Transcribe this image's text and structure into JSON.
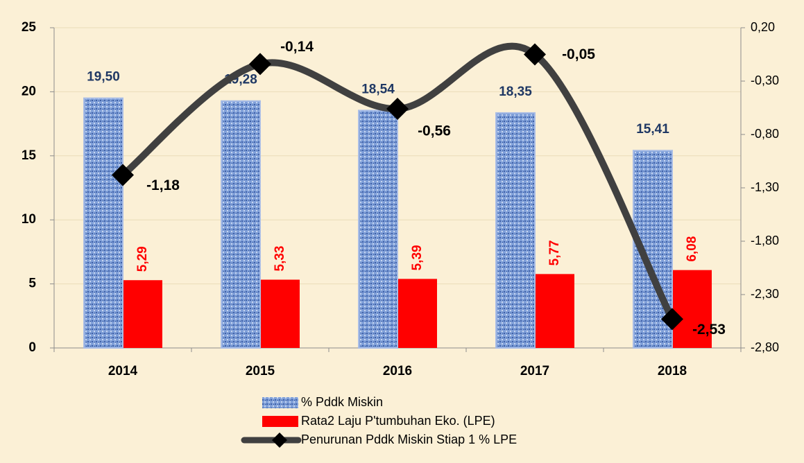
{
  "chart_data": {
    "type": "bar",
    "categories": [
      "2014",
      "2015",
      "2016",
      "2017",
      "2018"
    ],
    "series": [
      {
        "name": "% Pddk Miskin",
        "color": "#7f9fd8",
        "values": [
          19.5,
          19.28,
          18.54,
          18.35,
          15.41
        ],
        "value_labels": [
          "19,50",
          "19,28",
          "18,54",
          "18,35",
          "15,41"
        ]
      },
      {
        "name": "Rata2 Laju P'tumbuhan Eko. (LPE)",
        "color": "#ff0000",
        "values": [
          5.29,
          5.33,
          5.39,
          5.77,
          6.08
        ],
        "value_labels": [
          "5,29",
          "5,33",
          "5,39",
          "5,77",
          "6,08"
        ]
      },
      {
        "name": "Penurunan Pddk Miskin Stiap 1 % LPE",
        "color": "#404040",
        "axis": "y2",
        "type": "line",
        "values": [
          -1.18,
          -0.14,
          -0.56,
          -0.05,
          -2.53
        ],
        "value_labels": [
          "-1,18",
          "-0,14",
          "-0,56",
          "-0,05",
          "-2,53"
        ]
      }
    ],
    "ylim": [
      0,
      25
    ],
    "yticks": [
      0,
      5,
      10,
      15,
      20,
      25
    ],
    "y2lim": [
      -2.8,
      0.2
    ],
    "y2ticks": [
      {
        "value": -2.8,
        "label": "-2,80"
      },
      {
        "value": -2.3,
        "label": "-2,30"
      },
      {
        "value": -1.8,
        "label": "-1,80"
      },
      {
        "value": -1.3,
        "label": "-1,30"
      },
      {
        "value": -0.8,
        "label": "-0,80"
      },
      {
        "value": -0.3,
        "label": "-0,30"
      },
      {
        "value": 0.2,
        "label": "0,20"
      }
    ],
    "legend": "bottom"
  }
}
